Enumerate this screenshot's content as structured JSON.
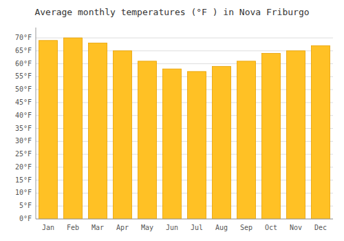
{
  "chart_data": {
    "type": "bar",
    "title": "Average monthly temperatures (°F ) in Nova Friburgo",
    "categories": [
      "Jan",
      "Feb",
      "Mar",
      "Apr",
      "May",
      "Jun",
      "Jul",
      "Aug",
      "Sep",
      "Oct",
      "Nov",
      "Dec"
    ],
    "values": [
      69,
      70,
      68,
      65,
      61,
      58,
      57,
      59,
      61,
      64,
      65,
      67
    ],
    "color": "#FFC125",
    "ylim": [
      0,
      74
    ],
    "yticks": [
      {
        "value": 0,
        "label": "0°F"
      },
      {
        "value": 5,
        "label": "5°F"
      },
      {
        "value": 10,
        "label": "10°F"
      },
      {
        "value": 15,
        "label": "15°F"
      },
      {
        "value": 20,
        "label": "20°F"
      },
      {
        "value": 25,
        "label": "25°F"
      },
      {
        "value": 30,
        "label": "30°F"
      },
      {
        "value": 35,
        "label": "35°F"
      },
      {
        "value": 40,
        "label": "40°F"
      },
      {
        "value": 45,
        "label": "45°F"
      },
      {
        "value": 50,
        "label": "50°F"
      },
      {
        "value": 55,
        "label": "55°F"
      },
      {
        "value": 60,
        "label": "60°F"
      },
      {
        "value": 65,
        "label": "65°F"
      },
      {
        "value": 70,
        "label": "70°F"
      }
    ],
    "grid": true
  }
}
